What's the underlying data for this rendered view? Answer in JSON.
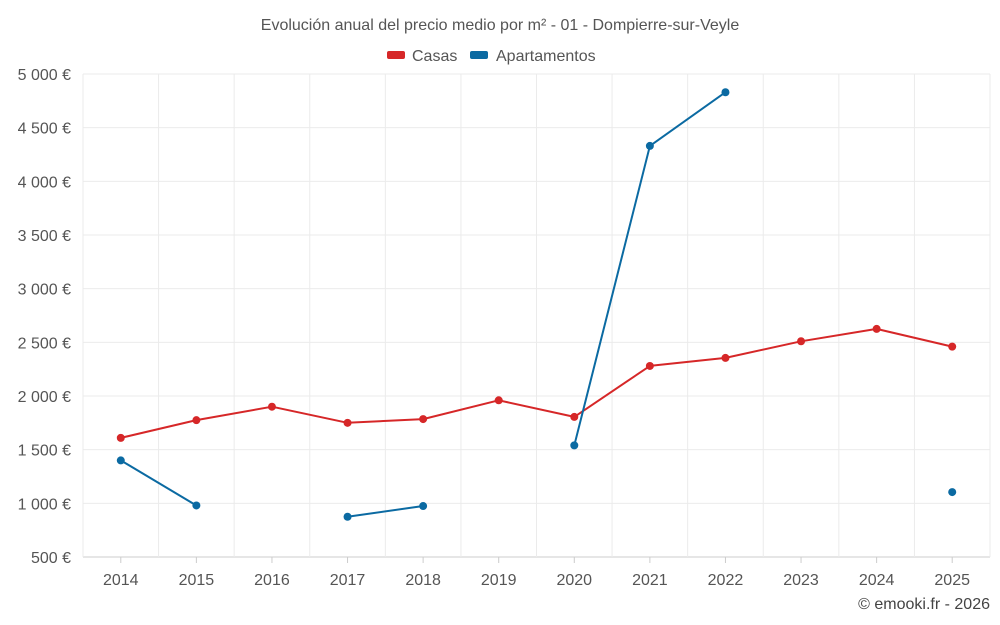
{
  "chart_data": {
    "type": "line",
    "title": "Evolución anual del precio medio por m² - 01 - Dompierre-sur-Veyle",
    "categories": [
      "2014",
      "2015",
      "2016",
      "2017",
      "2018",
      "2019",
      "2020",
      "2021",
      "2022",
      "2023",
      "2024",
      "2025"
    ],
    "y_ticks": [
      "500 €",
      "1 000 €",
      "1 500 €",
      "2 000 €",
      "2 500 €",
      "3 000 €",
      "3 500 €",
      "4 000 €",
      "4 500 €",
      "5 000 €"
    ],
    "y_tick_values": [
      500,
      1000,
      1500,
      2000,
      2500,
      3000,
      3500,
      4000,
      4500,
      5000
    ],
    "ylim": [
      500,
      5000
    ],
    "grid": true,
    "legend_position": "top-center",
    "series": [
      {
        "name": "Casas",
        "color": "#d62728",
        "values": [
          1610,
          1775,
          1900,
          1750,
          1785,
          1960,
          1805,
          2280,
          2355,
          2510,
          2625,
          2460
        ]
      },
      {
        "name": "Apartamentos",
        "color": "#0b6aa2",
        "values": [
          1400,
          980,
          null,
          875,
          975,
          null,
          1540,
          4330,
          4830,
          null,
          null,
          1105
        ]
      }
    ],
    "credit": "© emooki.fr - 2026"
  }
}
